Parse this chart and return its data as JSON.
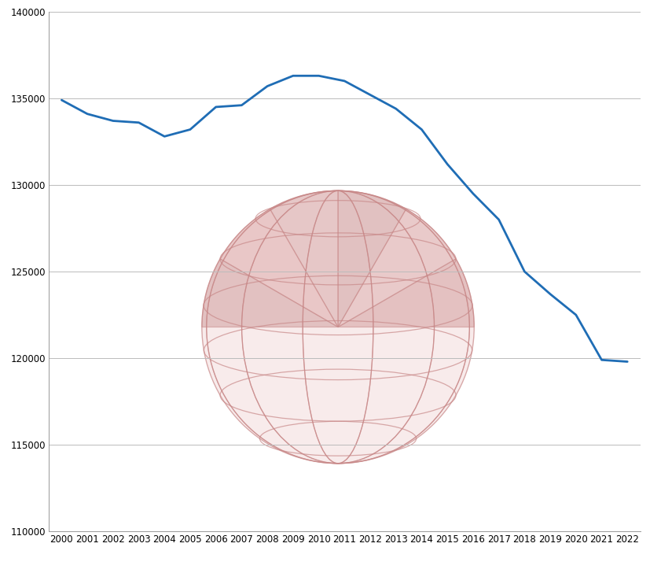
{
  "years": [
    2000,
    2001,
    2002,
    2003,
    2004,
    2005,
    2006,
    2007,
    2008,
    2009,
    2010,
    2011,
    2012,
    2013,
    2014,
    2015,
    2016,
    2017,
    2018,
    2019,
    2020,
    2021,
    2022
  ],
  "population": [
    134900,
    134100,
    133700,
    133600,
    132800,
    133200,
    134500,
    134600,
    135700,
    136300,
    136300,
    136000,
    135200,
    134400,
    133200,
    131200,
    129500,
    128000,
    125000,
    123700,
    122500,
    119900,
    119800
  ],
  "line_color": "#1f6db5",
  "line_width": 2.0,
  "ylim": [
    110000,
    140000
  ],
  "yticks": [
    110000,
    115000,
    120000,
    125000,
    130000,
    135000,
    140000
  ],
  "xlim_start": 2000,
  "xlim_end": 2022,
  "grid_color": "#bbbbbb",
  "bg_color": "#ffffff",
  "spine_color": "#999999",
  "tick_fontsize": 8.5,
  "globe_fill_color": "#e8b8b8",
  "globe_line_color": "#c88888",
  "globe_seg_colors": [
    "#d4a0a0",
    "#ddb0b0",
    "#cfa0a0",
    "#d8aaaa",
    "#ddaaaa",
    "#d0a0a0"
  ],
  "globe_alpha": 0.55,
  "globe_line_alpha": 0.7
}
